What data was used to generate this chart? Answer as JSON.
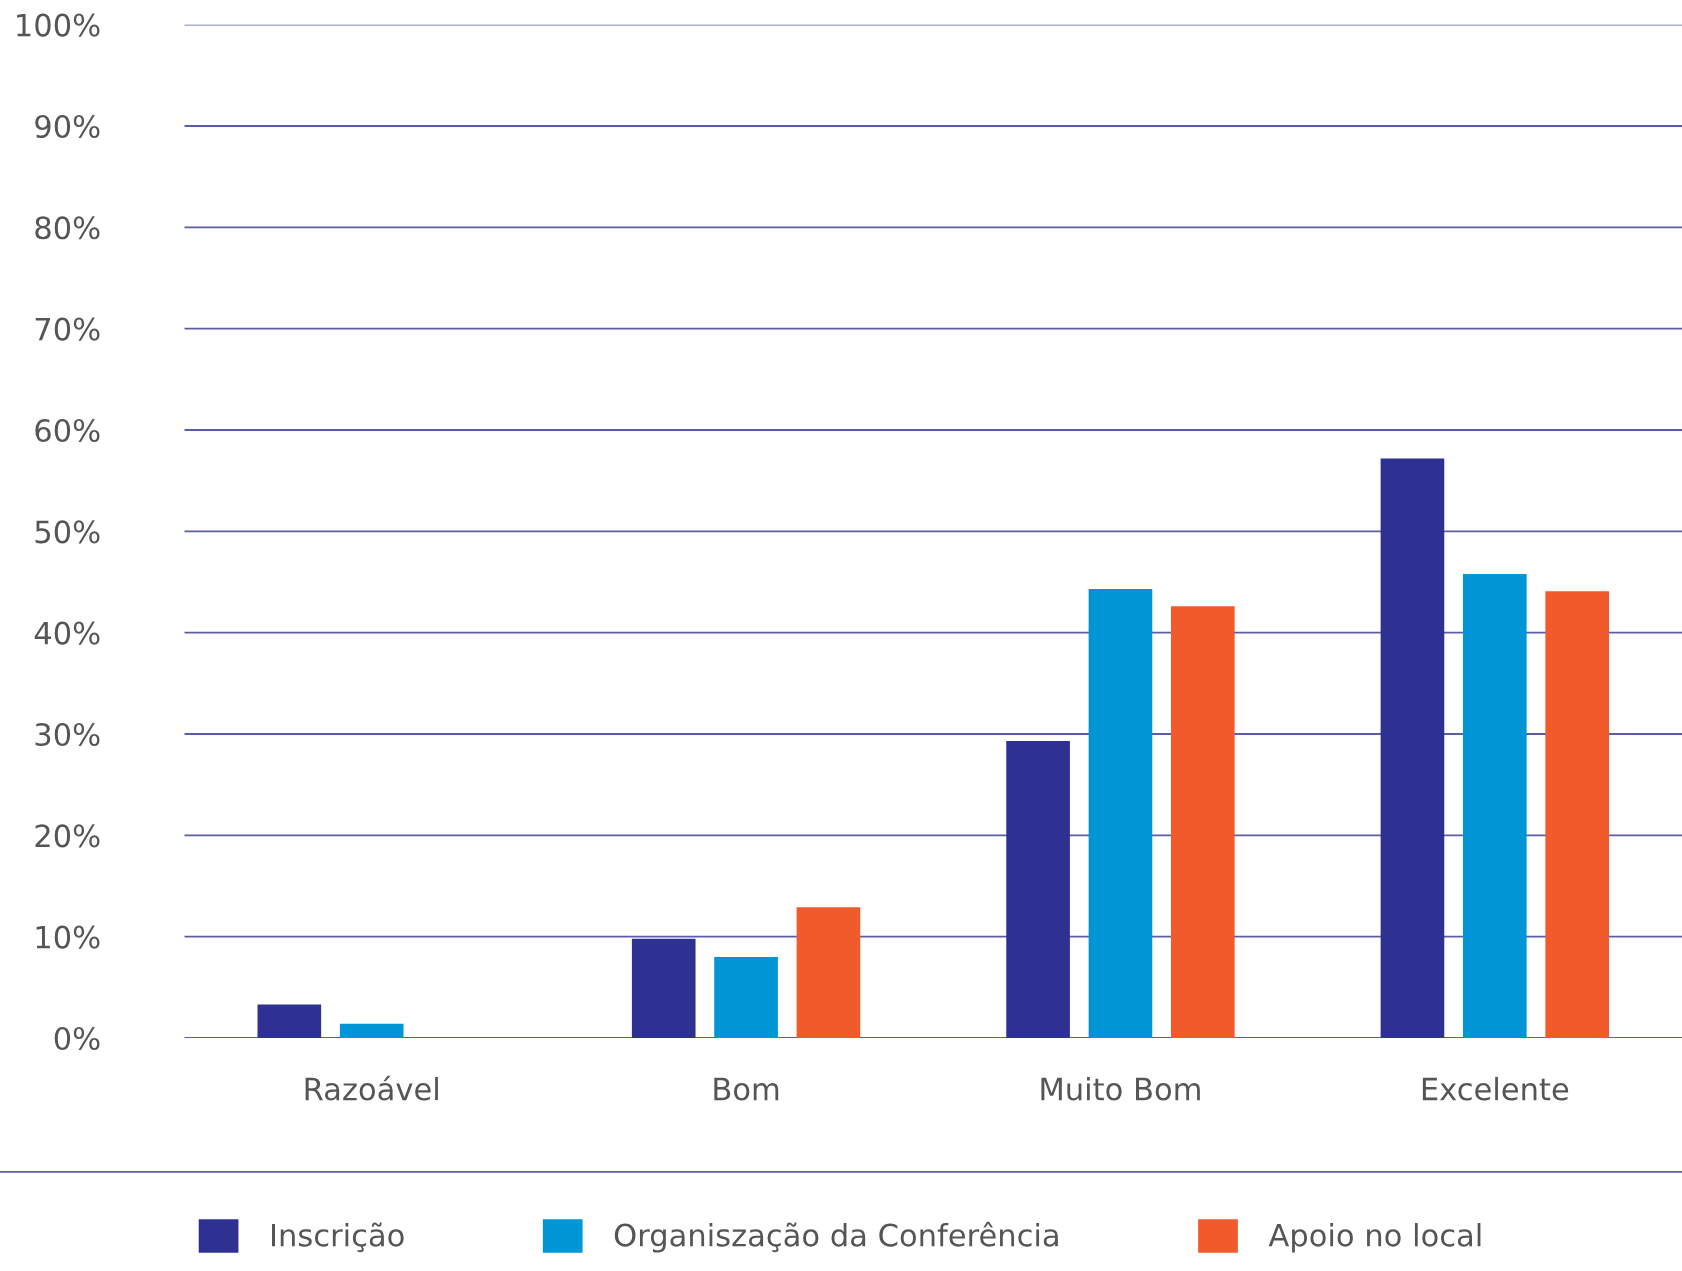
{
  "chart_data": {
    "type": "bar",
    "categories": [
      "Razoável",
      "Bom",
      "Muito Bom",
      "Excelente"
    ],
    "series": [
      {
        "name": "Inscrição",
        "color": "#2e3192",
        "values": [
          3.3,
          9.8,
          29.3,
          57.2
        ]
      },
      {
        "name": "Organiszação da Conferência",
        "color": "#0096d6",
        "values": [
          1.4,
          8.0,
          44.3,
          45.8
        ]
      },
      {
        "name": "Apoio no local",
        "color": "#f15a2b",
        "values": [
          0,
          12.9,
          42.6,
          44.1
        ]
      }
    ],
    "ylim": [
      0,
      100
    ],
    "yticks": [
      {
        "value": 0,
        "label": "0%"
      },
      {
        "value": 10,
        "label": "10%"
      },
      {
        "value": 20,
        "label": "20%"
      },
      {
        "value": 30,
        "label": "30%"
      },
      {
        "value": 40,
        "label": "40%"
      },
      {
        "value": 50,
        "label": "50%"
      },
      {
        "value": 60,
        "label": "60%"
      },
      {
        "value": 70,
        "label": "70%"
      },
      {
        "value": 80,
        "label": "80%"
      },
      {
        "value": 90,
        "label": "90%"
      },
      {
        "value": 100,
        "label": "100%"
      }
    ],
    "grid": "y",
    "legend": "bottom"
  }
}
